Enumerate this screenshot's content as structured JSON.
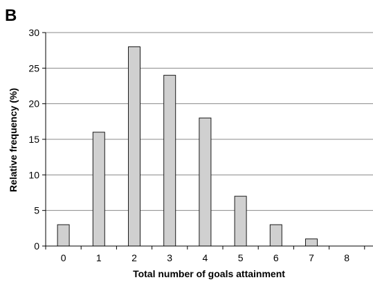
{
  "panel_label": "B",
  "colors": {
    "bar_fill": "#d0d0d0",
    "bar_stroke": "#1a1a1a",
    "grid": "#888888",
    "axis": "#000000"
  },
  "chart_data": {
    "type": "bar",
    "categories": [
      "0",
      "1",
      "2",
      "3",
      "4",
      "5",
      "6",
      "7",
      "8"
    ],
    "values": [
      3,
      16,
      28,
      24,
      18,
      7,
      3,
      1,
      0
    ],
    "xlabel": "Total number of goals attainment",
    "ylabel": "Relative frequency (%)",
    "ylim": [
      0,
      30
    ],
    "yticks": [
      "0",
      "5",
      "10",
      "15",
      "20",
      "25",
      "30"
    ],
    "grid": "horizontal",
    "legend": "none"
  }
}
